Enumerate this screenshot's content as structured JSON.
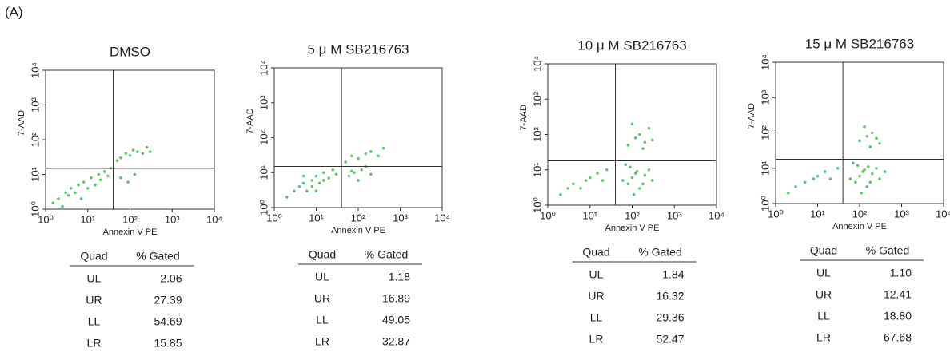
{
  "panel_label": "(A)",
  "chart_data": [
    {
      "type": "scatter",
      "title": "DMSO",
      "xlabel": "Annexin V PE",
      "ylabel": "7-AAD",
      "color": "#3cb44b",
      "log_scale": true,
      "xlim": [
        1,
        10000
      ],
      "ylim": [
        1,
        10000
      ],
      "xticks": [
        {
          "value": 1,
          "label": "10⁰"
        },
        {
          "value": 10,
          "label": "10¹"
        },
        {
          "value": 100,
          "label": "10²"
        },
        {
          "value": 1000,
          "label": "10³"
        },
        {
          "value": 10000,
          "label": "10⁴"
        }
      ],
      "yticks": [
        {
          "value": 1,
          "label": "10⁰"
        },
        {
          "value": 10,
          "label": "10¹"
        },
        {
          "value": 100,
          "label": "10²"
        },
        {
          "value": 1000,
          "label": "10³"
        },
        {
          "value": 10000,
          "label": "10⁴"
        }
      ],
      "gate": {
        "x": 40,
        "y": 15
      },
      "x": [
        1.5,
        2,
        2.5,
        3,
        3.5,
        4,
        5,
        6,
        7,
        8,
        10,
        12,
        15,
        18,
        20,
        25,
        30,
        35,
        50,
        60,
        80,
        100,
        120,
        150,
        200,
        250,
        300,
        60,
        90,
        130
      ],
      "y": [
        1.5,
        2,
        1.2,
        3,
        2.5,
        4,
        3,
        5,
        2,
        6,
        4,
        8,
        5,
        10,
        7,
        12,
        9,
        15,
        25,
        30,
        40,
        35,
        50,
        45,
        40,
        60,
        45,
        8,
        6,
        10
      ],
      "table": {
        "columns": [
          "Quad",
          "% Gated"
        ],
        "rows": [
          [
            "UL",
            "2.06"
          ],
          [
            "UR",
            "27.39"
          ],
          [
            "LL",
            "54.69"
          ],
          [
            "LR",
            "15.85"
          ]
        ]
      }
    },
    {
      "type": "scatter",
      "title": "5 μ M SB216763",
      "xlabel": "Annexin V PE",
      "ylabel": "7-AAD",
      "color": "#3cb44b",
      "log_scale": true,
      "xlim": [
        1,
        10000
      ],
      "ylim": [
        1,
        10000
      ],
      "xticks": [
        {
          "value": 1,
          "label": "10⁰"
        },
        {
          "value": 10,
          "label": "10¹"
        },
        {
          "value": 100,
          "label": "10²"
        },
        {
          "value": 1000,
          "label": "10³"
        },
        {
          "value": 10000,
          "label": "10⁴"
        }
      ],
      "yticks": [
        {
          "value": 1,
          "label": "10⁰"
        },
        {
          "value": 10,
          "label": "10¹"
        },
        {
          "value": 100,
          "label": "10²"
        },
        {
          "value": 1000,
          "label": "10³"
        },
        {
          "value": 10000,
          "label": "10⁴"
        }
      ],
      "gate": {
        "x": 40,
        "y": 15
      },
      "x": [
        2,
        3,
        4,
        5,
        6,
        8,
        10,
        12,
        15,
        20,
        25,
        30,
        8,
        10,
        15,
        5,
        50,
        70,
        100,
        150,
        200,
        300,
        400,
        60,
        80,
        120,
        150,
        200,
        100,
        70
      ],
      "y": [
        2,
        3,
        4,
        5,
        3,
        6,
        8,
        5,
        10,
        7,
        12,
        9,
        4,
        3,
        6,
        8,
        20,
        30,
        25,
        35,
        40,
        30,
        50,
        8,
        10,
        12,
        15,
        9,
        6,
        11
      ],
      "table": {
        "columns": [
          "Quad",
          "% Gated"
        ],
        "rows": [
          [
            "UL",
            "1.18"
          ],
          [
            "UR",
            "16.89"
          ],
          [
            "LL",
            "49.05"
          ],
          [
            "LR",
            "32.87"
          ]
        ]
      }
    },
    {
      "type": "scatter",
      "title": "10 μ M SB216763",
      "xlabel": "Annexin V PE",
      "ylabel": "7-AAD",
      "color": "#3cb44b",
      "log_scale": true,
      "xlim": [
        1,
        10000
      ],
      "ylim": [
        1,
        10000
      ],
      "xticks": [
        {
          "value": 1,
          "label": "10⁰"
        },
        {
          "value": 10,
          "label": "10¹"
        },
        {
          "value": 100,
          "label": "10²"
        },
        {
          "value": 1000,
          "label": "10³"
        },
        {
          "value": 10000,
          "label": "10⁴"
        }
      ],
      "yticks": [
        {
          "value": 1,
          "label": "10⁰"
        },
        {
          "value": 10,
          "label": "10¹"
        },
        {
          "value": 100,
          "label": "10²"
        },
        {
          "value": 1000,
          "label": "10³"
        },
        {
          "value": 10000,
          "label": "10⁴"
        }
      ],
      "gate": {
        "x": 40,
        "y": 18
      },
      "x": [
        2,
        3,
        4,
        6,
        8,
        10,
        15,
        20,
        25,
        60,
        80,
        100,
        120,
        150,
        200,
        250,
        300,
        90,
        130,
        180,
        70,
        110,
        80,
        120,
        150,
        200,
        300,
        100,
        250,
        180
      ],
      "y": [
        2,
        3,
        4,
        3,
        5,
        6,
        8,
        5,
        10,
        5,
        4,
        6,
        8,
        3,
        7,
        10,
        5,
        12,
        9,
        4,
        14,
        2,
        50,
        80,
        100,
        60,
        70,
        200,
        150,
        40
      ],
      "table": {
        "columns": [
          "Quad",
          "% Gated"
        ],
        "rows": [
          [
            "UL",
            "1.84"
          ],
          [
            "UR",
            "16.32"
          ],
          [
            "LL",
            "29.36"
          ],
          [
            "LR",
            "52.47"
          ]
        ]
      }
    },
    {
      "type": "scatter",
      "title": "15 μ M SB216763",
      "xlabel": "Annexin V PE",
      "ylabel": "7-AAD",
      "color": "#3cb44b",
      "log_scale": true,
      "xlim": [
        1,
        10000
      ],
      "ylim": [
        1,
        10000
      ],
      "xticks": [
        {
          "value": 1,
          "label": "10⁰"
        },
        {
          "value": 10,
          "label": "10¹"
        },
        {
          "value": 100,
          "label": "10²"
        },
        {
          "value": 1000,
          "label": "10³"
        },
        {
          "value": 10000,
          "label": "10⁴"
        }
      ],
      "yticks": [
        {
          "value": 1,
          "label": "10⁰"
        },
        {
          "value": 10,
          "label": "10¹"
        },
        {
          "value": 100,
          "label": "10²"
        },
        {
          "value": 1000,
          "label": "10³"
        },
        {
          "value": 10000,
          "label": "10⁴"
        }
      ],
      "gate": {
        "x": 40,
        "y": 18
      },
      "x": [
        2,
        3,
        5,
        8,
        10,
        15,
        20,
        30,
        60,
        80,
        100,
        120,
        150,
        200,
        250,
        300,
        400,
        90,
        130,
        180,
        70,
        110,
        160,
        100,
        150,
        200,
        300,
        130,
        250,
        180
      ],
      "y": [
        2,
        3,
        4,
        5,
        6,
        8,
        5,
        10,
        5,
        4,
        6,
        8,
        3,
        7,
        10,
        5,
        8,
        12,
        9,
        4,
        14,
        2,
        11,
        60,
        80,
        100,
        50,
        150,
        70,
        40
      ],
      "table": {
        "columns": [
          "Quad",
          "% Gated"
        ],
        "rows": [
          [
            "UL",
            "1.10"
          ],
          [
            "UR",
            "12.41"
          ],
          [
            "LL",
            "18.80"
          ],
          [
            "LR",
            "67.68"
          ]
        ]
      }
    }
  ]
}
